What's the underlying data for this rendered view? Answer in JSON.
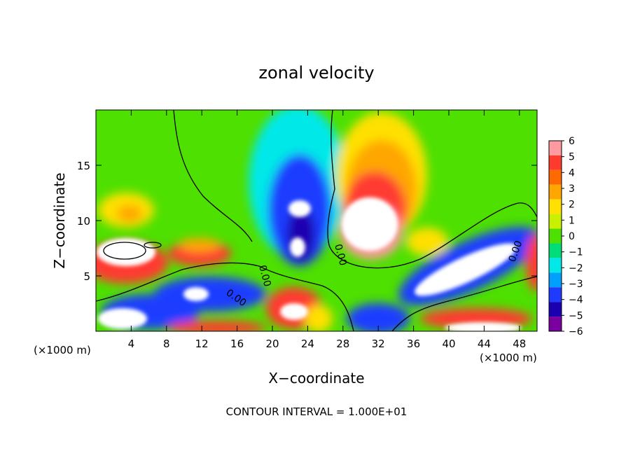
{
  "chart_data": {
    "type": "heatmap",
    "title": "zonal velocity",
    "xlabel": "X−coordinate",
    "ylabel": "Z−coordinate",
    "x_unit": "(×1000 m)",
    "x_unit_right": "(×1000 m)",
    "xlim": [
      0,
      50
    ],
    "ylim": [
      0,
      20
    ],
    "x_ticks": [
      4,
      8,
      12,
      16,
      20,
      24,
      28,
      32,
      36,
      40,
      44,
      48
    ],
    "y_ticks": [
      5,
      10,
      15
    ],
    "colorbar": {
      "ticks": [
        "6",
        "5",
        "4",
        "3",
        "2",
        "1",
        "0",
        "−1",
        "−2",
        "−3",
        "−4",
        "−5",
        "−6"
      ],
      "colors": [
        "#ff9aa0",
        "#ff3b30",
        "#ff6a00",
        "#ffa600",
        "#ffe000",
        "#c8f000",
        "#4ee000",
        "#00dc78",
        "#00e8e8",
        "#00a0ff",
        "#1e3cff",
        "#1a00b0",
        "#7a00a0"
      ]
    },
    "contour_labels": [
      "0.00",
      "0.00",
      "0.00",
      "0.00"
    ],
    "footer": "CONTOUR INTERVAL = 1.000E+01"
  }
}
